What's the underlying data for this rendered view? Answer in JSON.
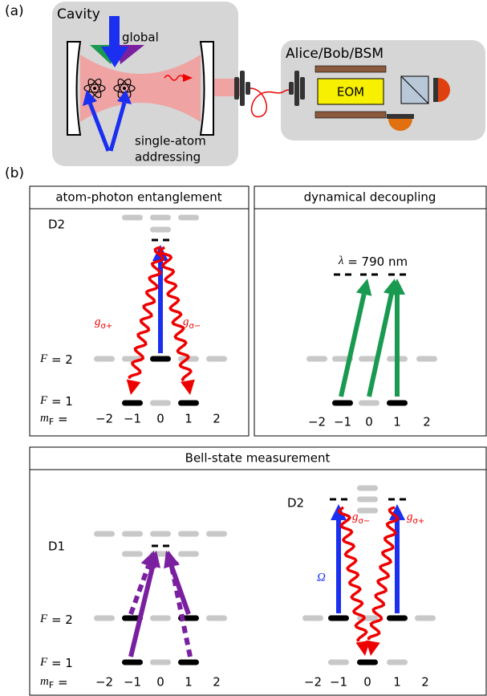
{
  "panel_a": {
    "label": "(a)",
    "cavity": "Cavity",
    "global": "global",
    "addressing": [
      "single-atom",
      "addressing"
    ],
    "node": "Alice/Bob/BSM",
    "eom": "EOM"
  },
  "panel_b": {
    "label": "(b)",
    "entanglement": {
      "title": "atom-photon entanglement",
      "excited": "D2",
      "upper": {
        "symbol": "F",
        "eq": "= 2"
      },
      "lower": {
        "symbol": "F",
        "eq": "= 1"
      },
      "mf": {
        "symbol": "m",
        "sub": "F",
        "eq": "="
      },
      "mf_values": [
        "−2",
        "−1",
        "0",
        "1",
        "2"
      ],
      "coupling_left": {
        "symbol": "g",
        "sub": "σ+"
      },
      "coupling_right": {
        "symbol": "g",
        "sub": "σ−"
      }
    },
    "decoupling": {
      "title": "dynamical decoupling",
      "wavelength": {
        "symbol": "λ",
        "eq": "= 790 nm"
      },
      "mf_values": [
        "−2",
        "−1",
        "0",
        "1",
        "2"
      ]
    },
    "bsm": {
      "title": "Bell-state measurement",
      "left_excited": "D1",
      "right_excited": "D2",
      "upper": {
        "symbol": "F",
        "eq": "= 2"
      },
      "lower": {
        "symbol": "F",
        "eq": "= 1"
      },
      "mf": {
        "symbol": "m",
        "sub": "F",
        "eq": "="
      },
      "left_mf_values": [
        "−2",
        "−1",
        "0",
        "1",
        "2"
      ],
      "right_mf_values": [
        "−2",
        "−1",
        "0",
        "1",
        "2"
      ],
      "rabi": "Ω",
      "coupling_left": {
        "symbol": "g",
        "sub": "σ−"
      },
      "coupling_right": {
        "symbol": "g",
        "sub": "σ+"
      }
    }
  }
}
